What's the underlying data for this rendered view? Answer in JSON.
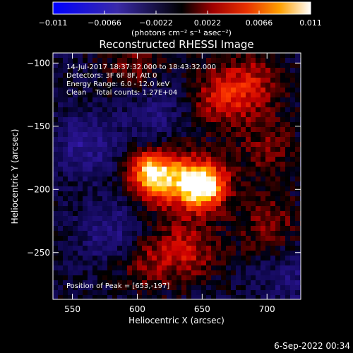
{
  "chart_data": {
    "type": "heatmap",
    "title": "Reconstructed RHESSI Image",
    "xlabel": "Heliocentric X (arcsec)",
    "ylabel": "Heliocentric Y (arcsec)",
    "xlim": [
      535,
      726
    ],
    "ylim": [
      -287,
      -92
    ],
    "xticks": [
      550,
      600,
      650,
      700
    ],
    "yticks": [
      -100,
      -150,
      -200,
      -250
    ],
    "colorbar": {
      "min": -0.011,
      "max": 0.011,
      "ticks": [
        "-0.011",
        "-0.0066",
        "-0.0022",
        "0.0022",
        "0.0066",
        "0.011"
      ],
      "label": "(photons cm⁻² s⁻¹ asec⁻²)"
    },
    "annotations": [
      "14-Jul-2017 18:37:32.000 to 18:43:32.000",
      "Detectors: 3F 6F 8F, Att 0",
      "Energy Range: 6.0 - 12.0 keV",
      "Clean    Total counts: 1.27E+04"
    ],
    "peak_text": "Position of Peak = [653,-197]",
    "sources": [
      {
        "x": 610,
        "y": -187,
        "value": 0.0095
      },
      {
        "x": 652,
        "y": -197,
        "value": 0.011
      },
      {
        "x": 632,
        "y": -194,
        "value": 0.0066
      },
      {
        "x": 665,
        "y": -128,
        "value": 0.005
      },
      {
        "x": 690,
        "y": -115,
        "value": 0.004
      },
      {
        "x": 640,
        "y": -248,
        "value": 0.0045
      },
      {
        "x": 606,
        "y": -257,
        "value": 0.0035
      },
      {
        "x": 701,
        "y": -228,
        "value": 0.0035
      },
      {
        "x": 700,
        "y": -168,
        "value": 0.003
      },
      {
        "x": 598,
        "y": -104,
        "value": 0.003
      },
      {
        "x": 580,
        "y": -235,
        "value": -0.0035
      },
      {
        "x": 560,
        "y": -165,
        "value": -0.004
      },
      {
        "x": 612,
        "y": -140,
        "value": -0.003
      },
      {
        "x": 718,
        "y": -270,
        "value": -0.0025
      }
    ]
  },
  "footer": {
    "date": "6-Sep-2022 00:34"
  }
}
